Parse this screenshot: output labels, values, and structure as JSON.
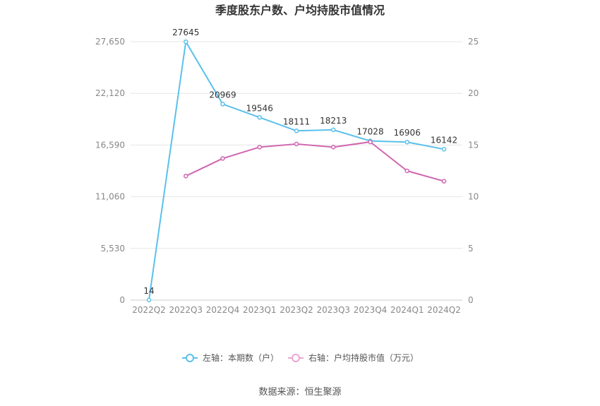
{
  "chart_data": {
    "type": "line",
    "title": "季度股东户数、户均持股市值情况",
    "categories": [
      "2022Q2",
      "2022Q3",
      "2022Q4",
      "2023Q1",
      "2023Q2",
      "2023Q3",
      "2023Q4",
      "2024Q1",
      "2024Q2"
    ],
    "left_axis": {
      "ylim": [
        0,
        27650
      ],
      "ticks": [
        "0",
        "5,530",
        "11,060",
        "16,590",
        "22,120",
        "27,650"
      ],
      "tick_values": [
        0,
        5530,
        11060,
        16590,
        22120,
        27650
      ]
    },
    "right_axis": {
      "ylim": [
        0,
        25
      ],
      "ticks": [
        "0",
        "5",
        "10",
        "15",
        "20",
        "25"
      ],
      "tick_values": [
        0,
        5,
        10,
        15,
        20,
        25
      ]
    },
    "series": [
      {
        "name": "左轴：本期数（户）",
        "axis": "left",
        "color": "#5bc0eb",
        "values": [
          14,
          27645,
          20969,
          19546,
          18111,
          18213,
          17028,
          16906,
          16142
        ],
        "labels": [
          "14",
          "27645",
          "20969",
          "19546",
          "18111",
          "18213",
          "17028",
          "16906",
          "16142"
        ]
      },
      {
        "name": "右轴：户均持股市值（万元）",
        "axis": "right",
        "color": "#d066b0",
        "values": [
          null,
          12.0,
          13.7,
          14.8,
          15.1,
          14.8,
          15.3,
          12.5,
          11.5
        ]
      }
    ],
    "grid": true,
    "legend_position": "bottom"
  },
  "source": "数据来源：恒生聚源"
}
